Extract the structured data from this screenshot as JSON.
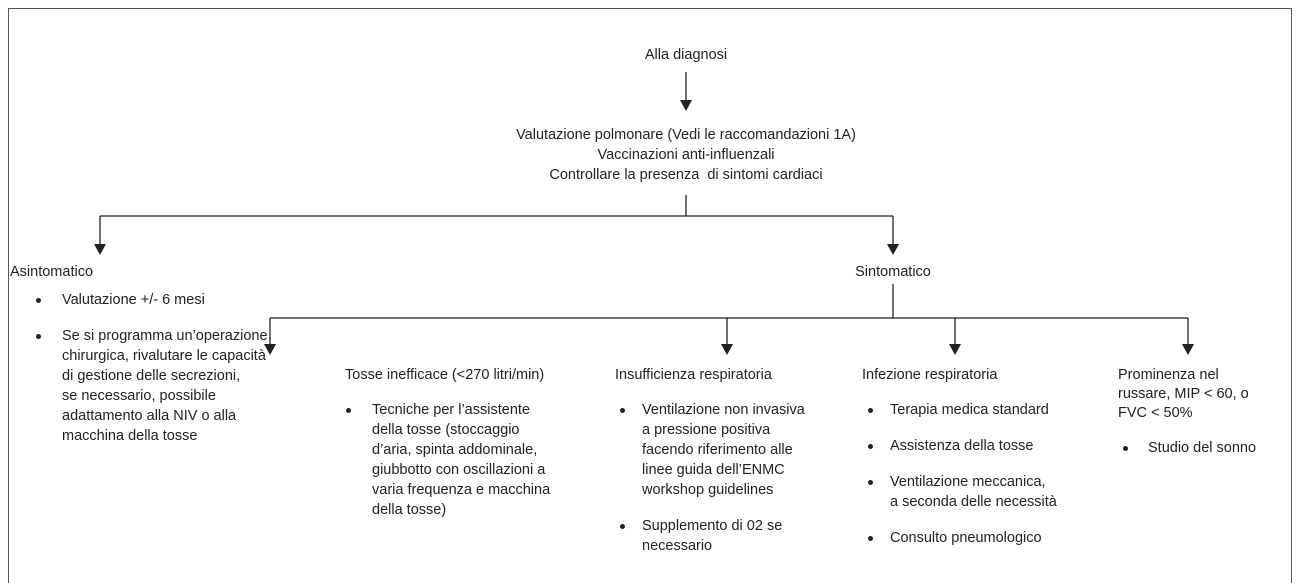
{
  "start": "Alla diagnosi",
  "assessment": [
    "Valutazione polmonare (Vedi le raccomandazioni 1A)",
    "Vaccinazioni anti-influenzali",
    "Controllare la presenza  di sintomi cardiaci"
  ],
  "branches": [
    {
      "label": "Asintomatico",
      "bullets": [
        [
          "Valutazione +/- 6 mesi"
        ],
        [
          "Se si programma un’operazione",
          "chirurgica, rivalutare le capacità",
          "di gestione delle secrezioni,",
          "se necessario, possibile",
          "adattamento alla NIV o alla",
          "macchina della tosse"
        ]
      ]
    },
    {
      "label": "Sintomatico"
    }
  ],
  "groups": [
    {
      "label": [
        "Tosse inefficace (<270 litri/min)"
      ],
      "bullets": [
        [
          "Tecniche per l’assistente",
          "della tosse (stoccaggio",
          "d’aria, spinta addominale,",
          "giubbotto con oscillazioni a",
          "varia frequenza e macchina",
          "della tosse)"
        ]
      ]
    },
    {
      "label": [
        "Insufficienza respiratoria"
      ],
      "bullets": [
        [
          "Ventilazione non invasiva",
          "a pressione positiva",
          "facendo riferimento alle",
          "linee guida dell’ENMC",
          "workshop guidelines"
        ],
        [
          "Supplemento di 02 se",
          "necessario"
        ]
      ]
    },
    {
      "label": [
        "Infezione respiratoria"
      ],
      "bullets": [
        [
          "Terapia medica standard"
        ],
        [
          "Assistenza della tosse"
        ],
        [
          "Ventilazione meccanica,",
          "a seconda delle necessità"
        ],
        [
          "Consulto pneumologico"
        ]
      ]
    },
    {
      "label": [
        "Prominenza nel",
        "russare, MIP < 60, o",
        "FVC < 50%"
      ],
      "bullets": [
        [
          "Studio del sonno"
        ]
      ]
    }
  ]
}
